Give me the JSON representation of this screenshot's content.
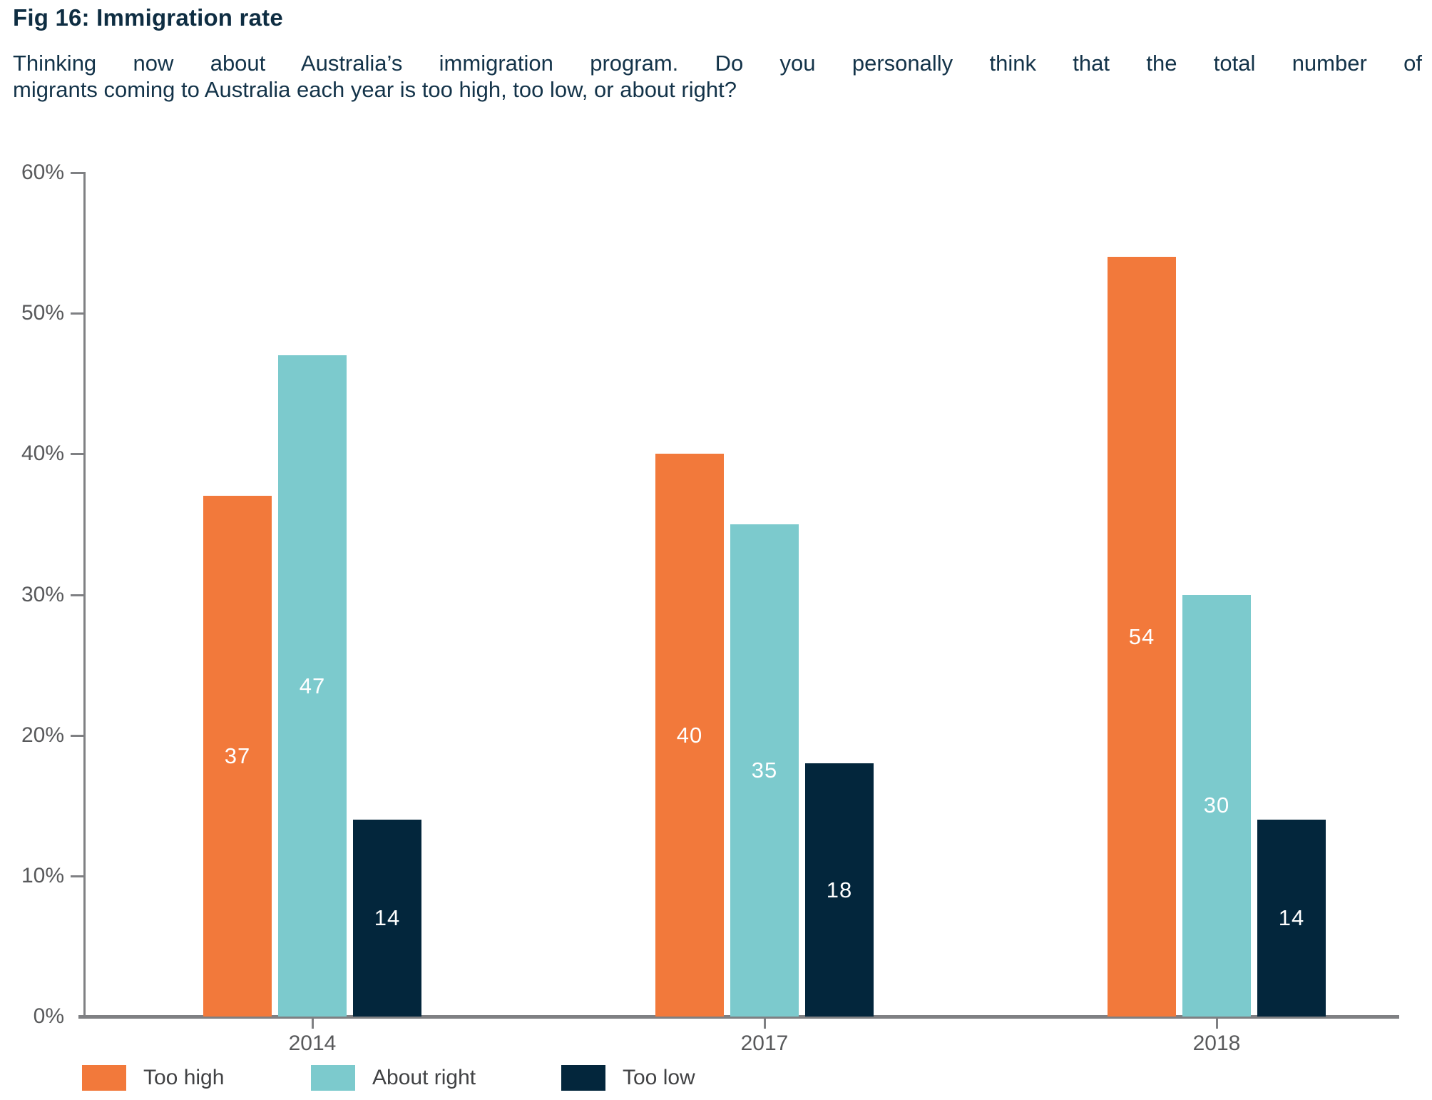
{
  "title": "Fig 16: Immigration rate",
  "subtitle": {
    "line1": "Thinking now about Australia’s immigration program. Do you personally think that the total number of",
    "line2": "migrants coming to Australia each year is too high, too low, or about right?"
  },
  "chart_data": {
    "type": "bar",
    "title": "Fig 16: Immigration rate",
    "question": "Thinking now about Australia’s immigration program. Do you personally think that the total number of migrants coming to Australia each year is too high, too low, or about right?",
    "categories": [
      "2014",
      "2017",
      "2018"
    ],
    "series": [
      {
        "name": "Too high",
        "color": "#f2793b",
        "values": [
          37,
          40,
          54
        ]
      },
      {
        "name": "About right",
        "color": "#7ccacd",
        "values": [
          47,
          35,
          30
        ]
      },
      {
        "name": "Too low",
        "color": "#03263c",
        "values": [
          14,
          18,
          14
        ]
      }
    ],
    "value_labels_shown": true,
    "ylabel": "",
    "xlabel": "",
    "ylim": [
      0,
      60
    ],
    "y_ticks": [
      {
        "label": "60%",
        "value": 60
      },
      {
        "label": "50%",
        "value": 50
      },
      {
        "label": "40%",
        "value": 40
      },
      {
        "label": "30%",
        "value": 30
      },
      {
        "label": "20%",
        "value": 20
      },
      {
        "label": "10%",
        "value": 10
      },
      {
        "label": "0%",
        "value": 0
      }
    ],
    "grid": false,
    "legend_position": "bottom"
  },
  "colors": {
    "axis_line": "#7f8083",
    "axis_text": "#58595b",
    "title_text": "#0e2d42",
    "subtitle_text": "#133349",
    "legend_text": "#414244",
    "bar_value_text": "#ffffff",
    "background": "#ffffff"
  }
}
